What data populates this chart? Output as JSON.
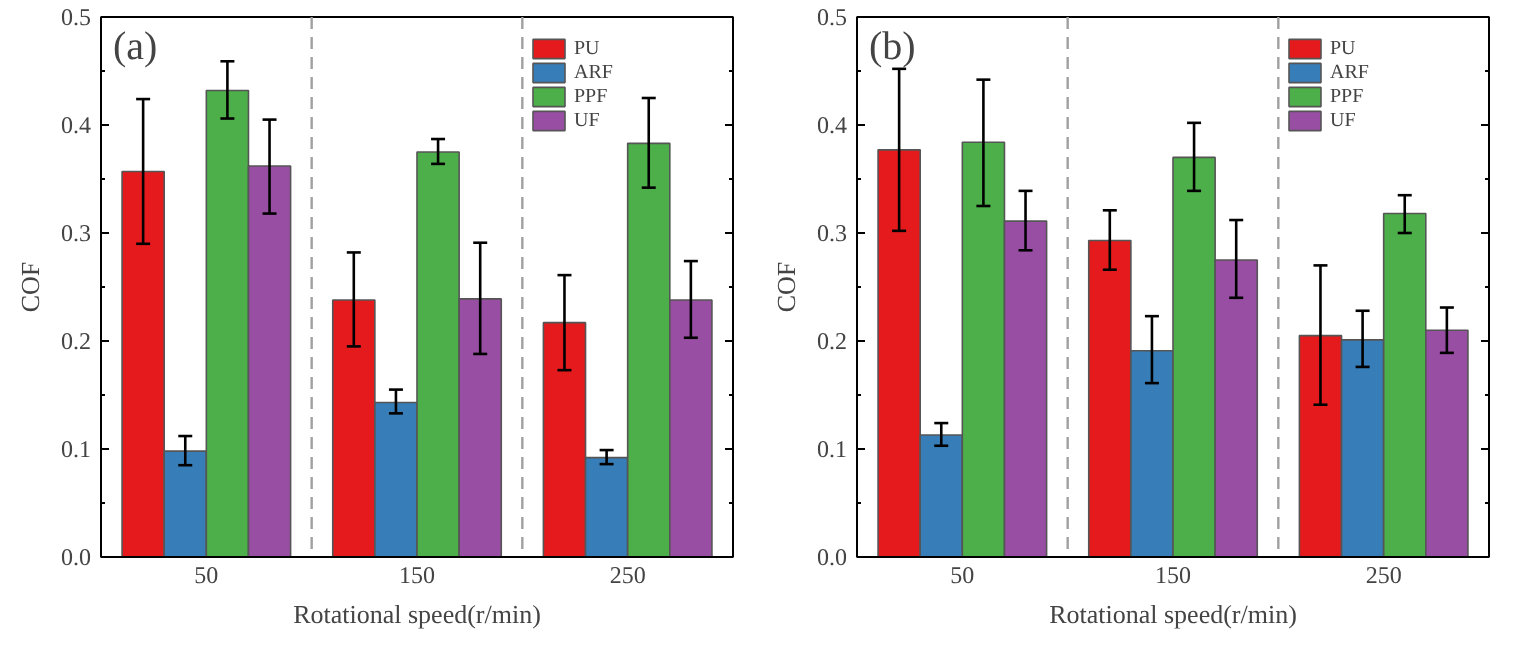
{
  "chart_data": [
    {
      "type": "bar",
      "xlabel": "Rotational speed(r/min)",
      "ylabel": "COF",
      "annotations": [
        "(a)"
      ],
      "x": [
        50,
        150,
        250
      ],
      "xlim": [
        0,
        300
      ],
      "xticks": [
        50,
        150,
        250
      ],
      "ylim": [
        0,
        0.5
      ],
      "yticks": [
        {
          "value": 0,
          "label": "0.0"
        },
        0.1,
        0.2,
        0.3,
        0.4,
        0.5
      ],
      "grid": false,
      "legend": "top right",
      "ref_lines": [
        {
          "axis": "x",
          "value": 100,
          "color": "#a0a0a0",
          "line_style": "dashed"
        },
        {
          "axis": "x",
          "value": 200,
          "color": "#a0a0a0",
          "line_style": "dashed"
        }
      ],
      "series": [
        {
          "name": "PU",
          "color": "#e41a1c",
          "values": [
            0.357,
            0.238,
            0.217
          ],
          "errors": [
            [
              0.29,
              0.424
            ],
            [
              0.195,
              0.282
            ],
            [
              0.173,
              0.261
            ]
          ]
        },
        {
          "name": "ARF",
          "color": "#377eb8",
          "values": [
            0.098,
            0.143,
            0.092
          ],
          "errors": [
            [
              0.085,
              0.112
            ],
            [
              0.133,
              0.155
            ],
            [
              0.086,
              0.099
            ]
          ]
        },
        {
          "name": "PPF",
          "color": "#4daf4a",
          "values": [
            0.432,
            0.375,
            0.383
          ],
          "errors": [
            [
              0.406,
              0.459
            ],
            [
              0.364,
              0.387
            ],
            [
              0.342,
              0.425
            ]
          ]
        },
        {
          "name": "UF",
          "color": "#984ea3",
          "values": [
            0.362,
            0.239,
            0.238
          ],
          "errors": [
            [
              0.318,
              0.405
            ],
            [
              0.188,
              0.291
            ],
            [
              0.203,
              0.274
            ]
          ]
        }
      ]
    },
    {
      "type": "bar",
      "xlabel": "Rotational speed(r/min)",
      "ylabel": "COF",
      "annotations": [
        "(b)"
      ],
      "x": [
        50,
        150,
        250
      ],
      "xlim": [
        0,
        300
      ],
      "xticks": [
        50,
        150,
        250
      ],
      "ylim": [
        0,
        0.5
      ],
      "yticks": [
        {
          "value": 0,
          "label": "0.0"
        },
        0.1,
        0.2,
        0.3,
        0.4,
        0.5
      ],
      "grid": false,
      "legend": "top right",
      "ref_lines": [
        {
          "axis": "x",
          "value": 100,
          "color": "#a0a0a0",
          "line_style": "dashed"
        },
        {
          "axis": "x",
          "value": 200,
          "color": "#a0a0a0",
          "line_style": "dashed"
        }
      ],
      "series": [
        {
          "name": "PU",
          "color": "#e41a1c",
          "values": [
            0.377,
            0.293,
            0.205
          ],
          "errors": [
            [
              0.302,
              0.452
            ],
            [
              0.266,
              0.321
            ],
            [
              0.141,
              0.27
            ]
          ]
        },
        {
          "name": "ARF",
          "color": "#377eb8",
          "values": [
            0.113,
            0.191,
            0.201
          ],
          "errors": [
            [
              0.103,
              0.124
            ],
            [
              0.161,
              0.223
            ],
            [
              0.176,
              0.228
            ]
          ]
        },
        {
          "name": "PPF",
          "color": "#4daf4a",
          "values": [
            0.384,
            0.37,
            0.318
          ],
          "errors": [
            [
              0.325,
              0.442
            ],
            [
              0.339,
              0.402
            ],
            [
              0.3,
              0.335
            ]
          ]
        },
        {
          "name": "UF",
          "color": "#984ea3",
          "values": [
            0.311,
            0.275,
            0.21
          ],
          "errors": [
            [
              0.284,
              0.339
            ],
            [
              0.24,
              0.312
            ],
            [
              0.189,
              0.231
            ]
          ]
        }
      ]
    }
  ]
}
